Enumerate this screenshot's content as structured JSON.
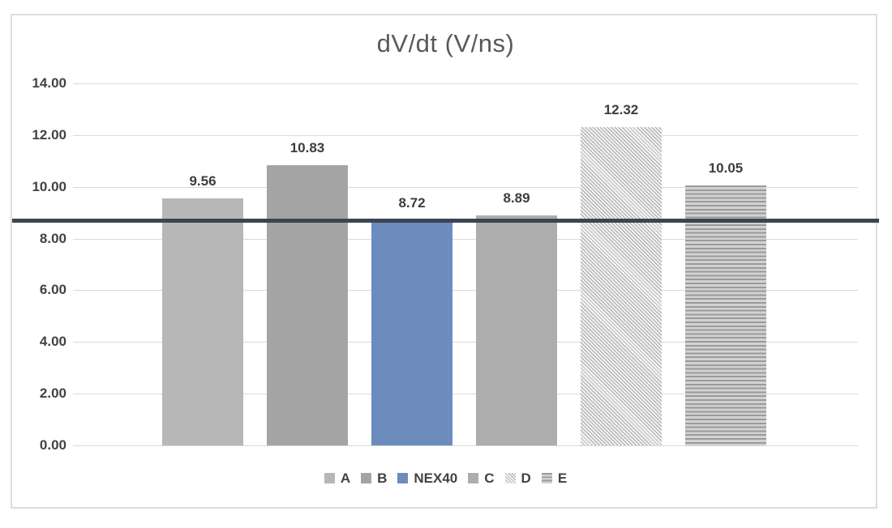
{
  "chart_data": {
    "type": "bar",
    "title": "dV/dt (V/ns)",
    "categories": [
      "A",
      "B",
      "NEX40",
      "C",
      "D",
      "E"
    ],
    "values": [
      9.56,
      10.83,
      8.72,
      8.89,
      12.32,
      10.05
    ],
    "value_labels": [
      "9.56",
      "10.83",
      "8.72",
      "8.89",
      "12.32",
      "10.05"
    ],
    "xlabel": "",
    "ylabel": "",
    "ylim": [
      0,
      14
    ],
    "ytick_labels": [
      "0.00",
      "2.00",
      "4.00",
      "6.00",
      "8.00",
      "10.00",
      "12.00",
      "14.00"
    ],
    "grid": true,
    "legend_position": "bottom",
    "legend_entries": [
      "A",
      "B",
      "NEX40",
      "C",
      "D",
      "E"
    ],
    "reference_line": {
      "value": 8.72,
      "color": "#3e4453"
    },
    "series_styles": [
      {
        "name": "A",
        "fill": "solid",
        "color": "#b7b7b7",
        "bg": "#b7b7b7"
      },
      {
        "name": "B",
        "fill": "solid",
        "color": "#a4a4a4",
        "bg": "#a4a4a4"
      },
      {
        "name": "NEX40",
        "fill": "solid",
        "color": "#6c8cbe",
        "bg": "#6c8cbe"
      },
      {
        "name": "C",
        "fill": "solid",
        "color": "#adadad",
        "bg": "#adadad"
      },
      {
        "name": "D",
        "fill": "diagonal-hatch",
        "color": "#a8a8a8",
        "bg": "#f1f1f1"
      },
      {
        "name": "E",
        "fill": "horizontal-stripes",
        "color": "#9b9b9b",
        "bg": "#d2d2d2"
      }
    ]
  },
  "colors": {
    "gridline": "#d9d9d9",
    "frame_border": "#dcdcdc",
    "title_text": "#595959",
    "tick_text": "#424242",
    "label_text": "#3d3d3d"
  }
}
